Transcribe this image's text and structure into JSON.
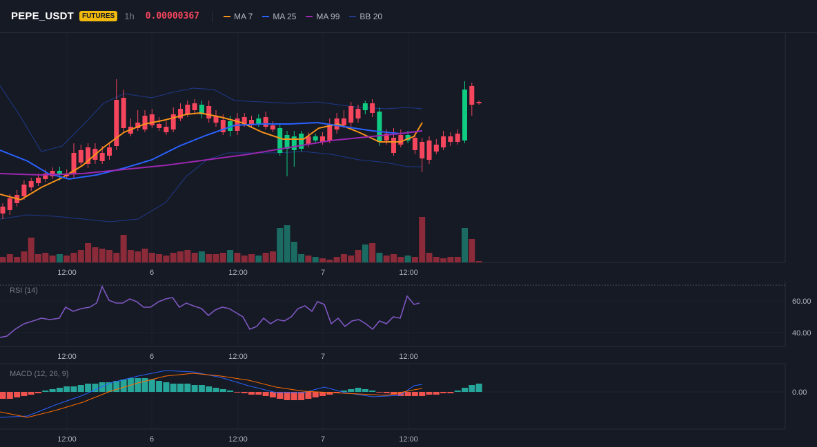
{
  "header": {
    "symbol": "PEPE_USDT",
    "badge": "FUTURES",
    "interval": "1h",
    "price": "0.00000367",
    "legend": [
      {
        "label": "MA 7",
        "color": "#f7931a"
      },
      {
        "label": "MA 25",
        "color": "#2962ff"
      },
      {
        "label": "MA 99",
        "color": "#9c27b0"
      },
      {
        "label": "BB 20",
        "color": "#1e3a8a"
      }
    ]
  },
  "colors": {
    "up": "#0ecb81",
    "down": "#f6465d",
    "vol_up": "#1b6b63",
    "vol_down": "#8b2a38",
    "grid": "#1f2330",
    "axis_text": "#b2b5be"
  },
  "time_axis": [
    "12:00",
    "6",
    "12:00",
    "7",
    "12:00"
  ],
  "rsi": {
    "label": "RSI (14)",
    "ticks": [
      "60.00",
      "40.00"
    ]
  },
  "macd": {
    "label": "MACD (12, 26, 9)",
    "ticks": [
      "0.00"
    ]
  }
}
